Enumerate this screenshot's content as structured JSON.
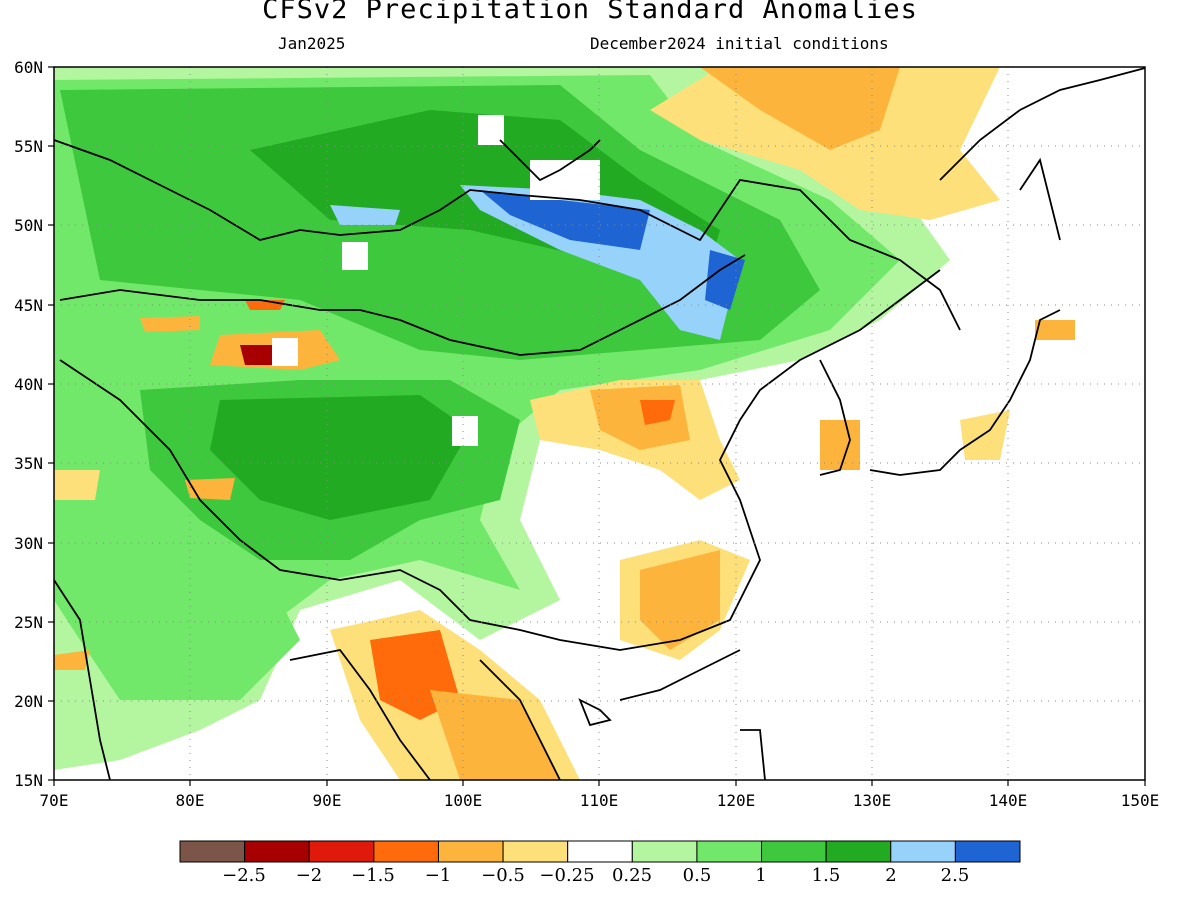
{
  "title": "CFSv2 Precipitation Standard Anomalies",
  "valid_month": "Jan2025",
  "init_conditions": "December2024 initial conditions",
  "map": {
    "lon_range": [
      70,
      150
    ],
    "lat_range": [
      15,
      60
    ],
    "x_tick_labels": [
      "70E",
      "80E",
      "90E",
      "100E",
      "110E",
      "120E",
      "130E",
      "140E",
      "150E"
    ],
    "y_tick_labels": [
      "15N",
      "20N",
      "25N",
      "30N",
      "35N",
      "40N",
      "45N",
      "50N",
      "55N",
      "60N"
    ],
    "grid": "dotted"
  },
  "colorbar": {
    "colors": [
      "#7a5548",
      "#a60000",
      "#e01a0a",
      "#ff6a0a",
      "#fdb43c",
      "#fde07a",
      "#ffffff",
      "#b4f5a0",
      "#72e86a",
      "#3ec83e",
      "#22aa22",
      "#96d2fa",
      "#1e64d2"
    ],
    "labels": [
      "−2.5",
      "−2",
      "−1.5",
      "−1",
      "−0.5",
      "−0.25",
      "0.25",
      "0.5",
      "1",
      "1.5",
      "2",
      "2.5"
    ]
  }
}
